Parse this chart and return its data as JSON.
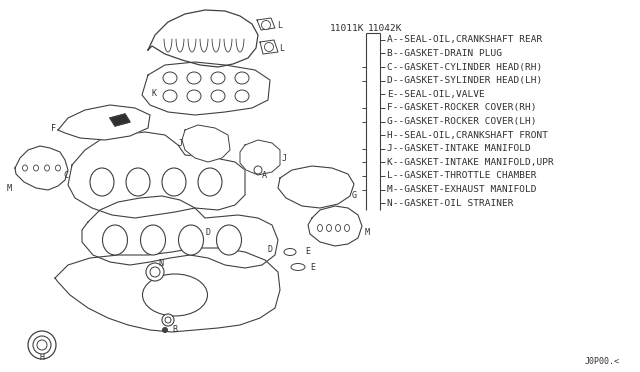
{
  "bg_color": "#ffffff",
  "line_color": "#404040",
  "text_color": "#303030",
  "legend_items": [
    "A--SEAL-OIL,CRANKSHAFT REAR",
    "B--GASKET-DRAIN PLUG",
    "C--GASKET-CYLINDER HEAD(RH)",
    "D--GASKET-SYLINDER HEAD(LH)",
    "E--SEAL-OIL,VALVE",
    "F--GASKET-ROCKER COVER(RH)",
    "G--GASKET-ROCKER COVER(LH)",
    "H--SEAL-OIL,CRANKSHAFT FRONT",
    "J--GASKET-INTAKE MANIFOLD",
    "K--GASKET-INTAKE MANIFOLD,UPR",
    "L--GASKET-THROTTLE CHAMBER",
    "M--GASKET-EXHAUST MANIFOLD",
    "N--GASKET-OIL STRAINER"
  ],
  "part_num_left": "11011K",
  "part_num_right": "11042K",
  "footer": "J0P00.<",
  "font_size_legend": 6.8,
  "font_size_label": 6.0,
  "font_size_partnum": 6.8
}
